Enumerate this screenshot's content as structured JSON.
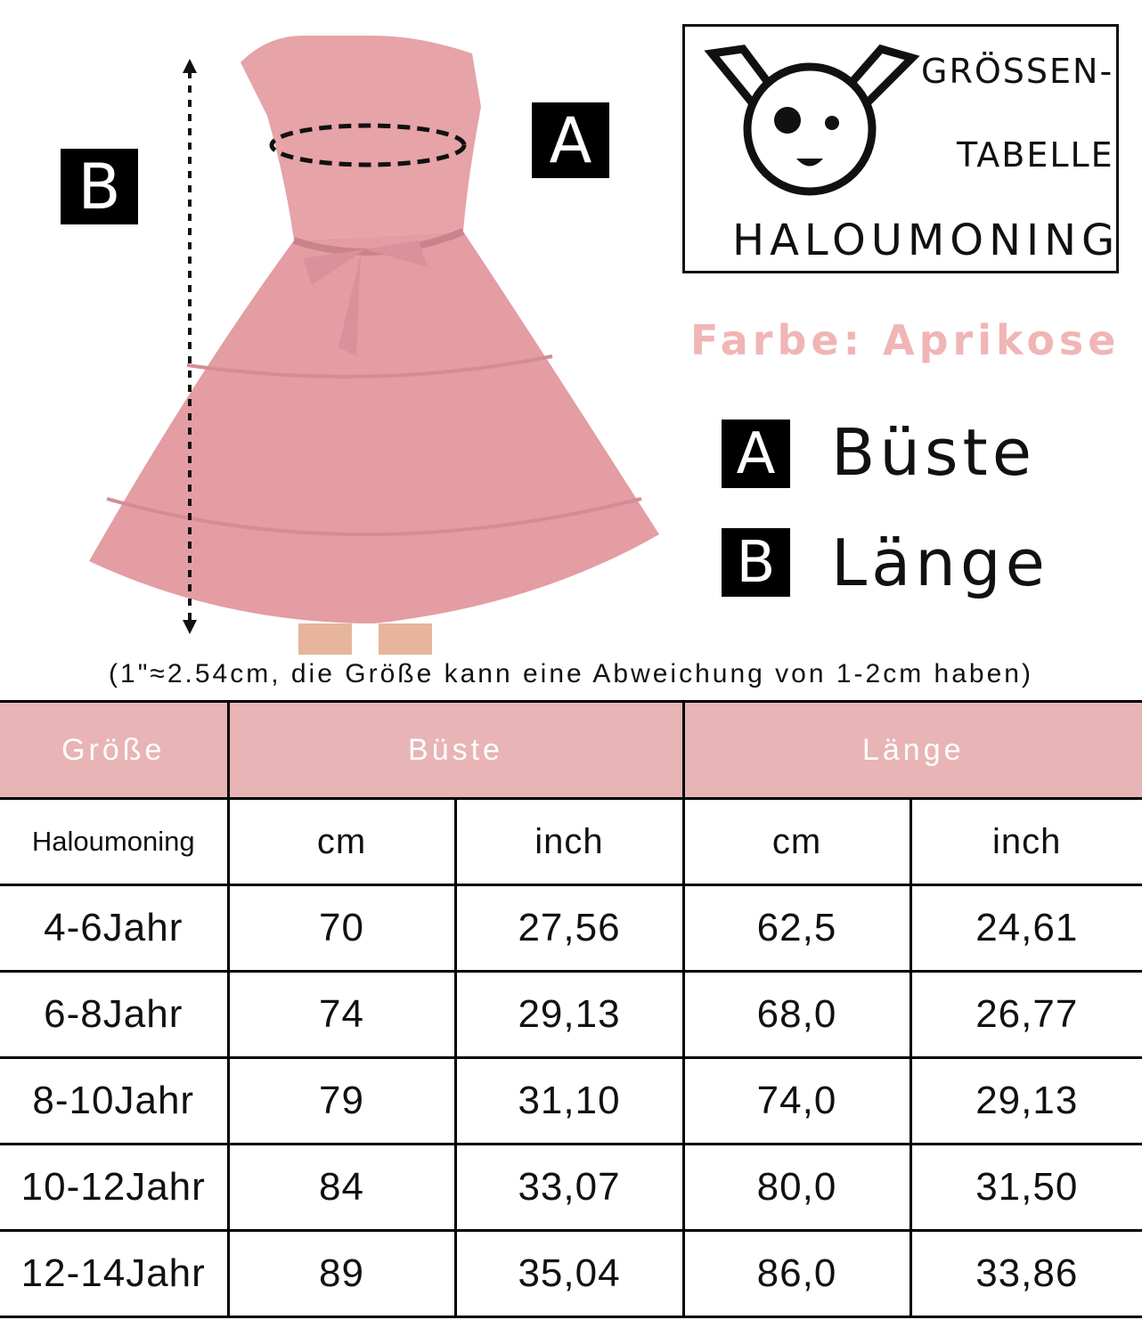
{
  "logo": {
    "line1": "GRÖSSEN-",
    "line2": "TABELLE",
    "brand": "HALOUMONING",
    "icon": "dog-face-icon"
  },
  "color_label": "Farbe: Aprikose",
  "markers": {
    "a": "A",
    "b": "B"
  },
  "legend": [
    {
      "key": "A",
      "label": "Büste"
    },
    {
      "key": "B",
      "label": "Länge"
    }
  ],
  "note": "(1\"≈2.54cm, die Größe kann eine Abweichung von 1-2cm haben)",
  "colors": {
    "header": "#e8b4b5",
    "dress": "#e6a3a8",
    "farbe": "#f0b5b5"
  },
  "table": {
    "headers": [
      "Größe",
      "Büste",
      "Länge"
    ],
    "units": [
      "Haloumoning",
      "cm",
      "inch",
      "cm",
      "inch"
    ],
    "rows": [
      [
        "4-6Jahr",
        "70",
        "27,56",
        "62,5",
        "24,61"
      ],
      [
        "6-8Jahr",
        "74",
        "29,13",
        "68,0",
        "26,77"
      ],
      [
        "8-10Jahr",
        "79",
        "31,10",
        "74,0",
        "29,13"
      ],
      [
        "10-12Jahr",
        "84",
        "33,07",
        "80,0",
        "31,50"
      ],
      [
        "12-14Jahr",
        "89",
        "35,04",
        "86,0",
        "33,86"
      ]
    ]
  }
}
